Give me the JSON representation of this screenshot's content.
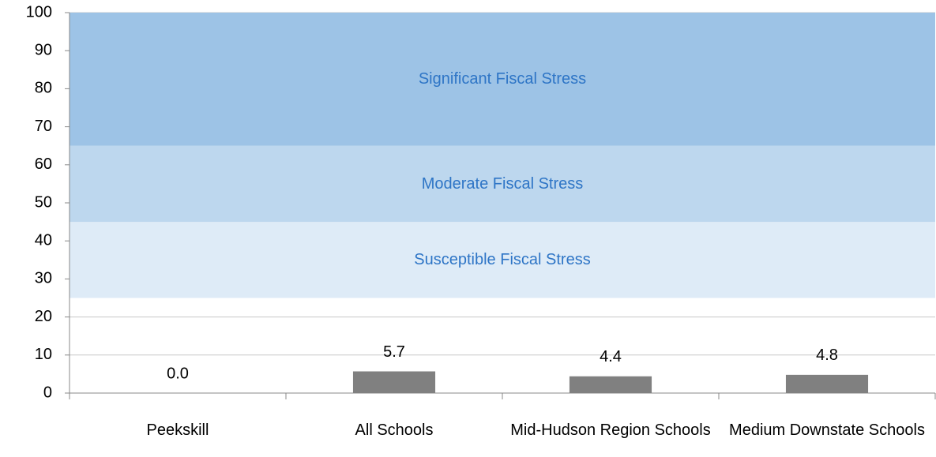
{
  "chart_data": {
    "type": "bar",
    "categories": [
      "Peekskill",
      "All Schools",
      "Mid-Hudson Region Schools",
      "Medium Downstate Schools"
    ],
    "values": [
      0,
      5.7,
      4.4,
      4.8
    ],
    "value_labels": [
      "0.0",
      "5.7",
      "4.4",
      "4.8"
    ],
    "color": "#808080",
    "ylim": [
      0,
      100
    ],
    "yticks": [
      0,
      10,
      20,
      30,
      40,
      50,
      60,
      70,
      80,
      90,
      100
    ],
    "grid": true,
    "bands": [
      {
        "label": "Susceptible Fiscal Stress",
        "from": 25,
        "to": 45,
        "color": "#deebf7"
      },
      {
        "label": "Moderate Fiscal Stress",
        "from": 45,
        "to": 65,
        "color": "#bdd7ee"
      },
      {
        "label": "Significant Fiscal Stress",
        "from": 65,
        "to": 100,
        "color": "#9dc3e6"
      }
    ],
    "band_text_color": "#2e75c6"
  }
}
